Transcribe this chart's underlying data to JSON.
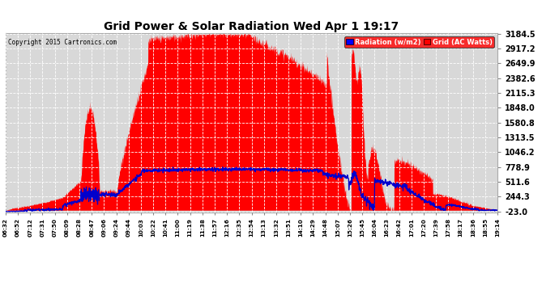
{
  "title": "Grid Power & Solar Radiation Wed Apr 1 19:17",
  "copyright": "Copyright 2015 Cartronics.com",
  "legend_radiation": "Radiation (w/m2)",
  "legend_grid": "Grid (AC Watts)",
  "ymin": -23.0,
  "ymax": 3184.5,
  "yticks": [
    3184.5,
    2917.2,
    2649.9,
    2382.6,
    2115.3,
    1848.0,
    1580.8,
    1313.5,
    1046.2,
    778.9,
    511.6,
    244.3,
    -23.0
  ],
  "bg_color": "#ffffff",
  "plot_bg_color": "#d8d8d8",
  "grid_color": "#ffffff",
  "fill_color": "#ff0000",
  "line_color": "#0000cc",
  "fill_alpha": 1.0,
  "xtick_labels": [
    "06:32",
    "06:52",
    "07:12",
    "07:31",
    "07:50",
    "08:09",
    "08:28",
    "08:47",
    "09:06",
    "09:24",
    "09:44",
    "10:03",
    "10:22",
    "10:41",
    "11:00",
    "11:19",
    "11:38",
    "11:57",
    "12:16",
    "12:35",
    "12:54",
    "13:13",
    "13:32",
    "13:51",
    "14:10",
    "14:29",
    "14:48",
    "15:07",
    "15:26",
    "15:45",
    "16:04",
    "16:23",
    "16:42",
    "17:01",
    "17:20",
    "17:39",
    "17:58",
    "18:17",
    "18:36",
    "18:55",
    "19:14"
  ]
}
